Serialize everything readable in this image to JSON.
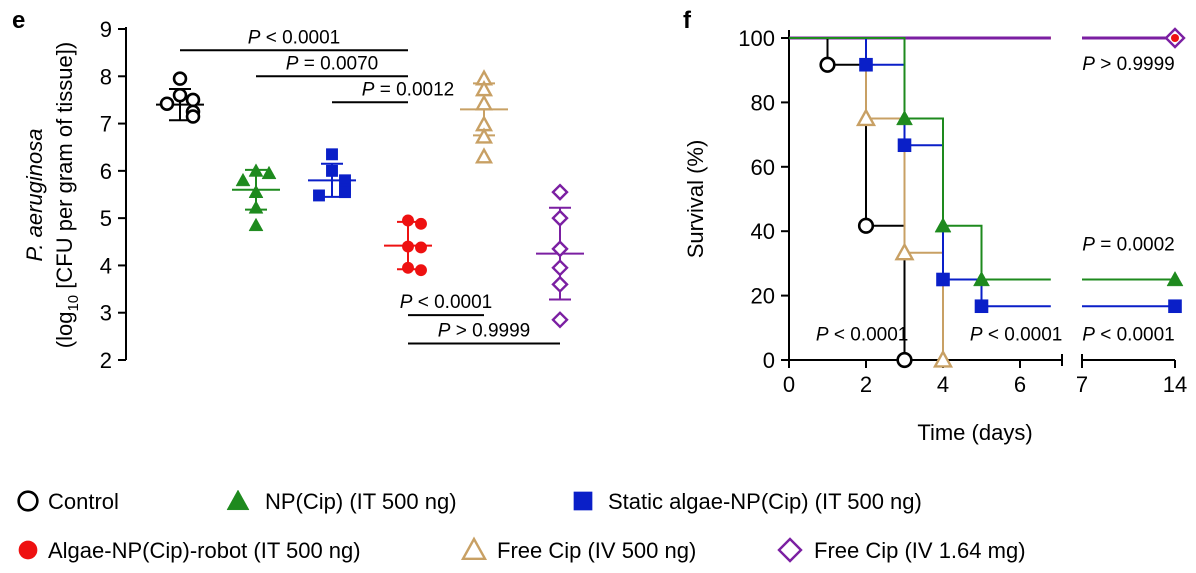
{
  "colors": {
    "control": "#000000",
    "np_cip": "#1e8a1e",
    "static": "#0a1fc8",
    "robot": "#ee1111",
    "free_it": "#c8a064",
    "free_iv": "#7b1fa2"
  },
  "legend": [
    {
      "key": "control",
      "label": "Control",
      "marker": "circle-open"
    },
    {
      "key": "np_cip",
      "label": "NP(Cip) (IT 500 ng)",
      "marker": "triangle-filled"
    },
    {
      "key": "static",
      "label": "Static algae-NP(Cip) (IT 500 ng)",
      "marker": "square-filled"
    },
    {
      "key": "robot",
      "label": "Algae-NP(Cip)-robot (IT 500 ng)",
      "marker": "circle-filled"
    },
    {
      "key": "free_it",
      "label": "Free Cip (IV 500 ng)",
      "marker": "triangle-open"
    },
    {
      "key": "free_iv",
      "label": "Free Cip (IV 1.64 mg)",
      "marker": "diamond-open"
    }
  ],
  "chart_data": [
    {
      "panel": "e",
      "type": "scatter",
      "ylabel_italic": "P. aeruginosa",
      "ylabel_pre": "(log",
      "ylabel_sub": "10",
      "ylabel_post": " [CFU per gram of tissue])",
      "ylim": [
        2,
        9
      ],
      "yticks": [
        "2",
        "3",
        "4",
        "5",
        "6",
        "7",
        "8",
        "9"
      ],
      "groups": [
        {
          "key": "control",
          "mean": 7.4,
          "sd": 0.33,
          "points": [
            7.95,
            7.6,
            7.5,
            7.42,
            7.25,
            7.15
          ]
        },
        {
          "key": "np_cip",
          "mean": 5.6,
          "sd": 0.42,
          "points": [
            6.0,
            5.95,
            5.8,
            5.55,
            5.22,
            4.85
          ]
        },
        {
          "key": "static",
          "mean": 5.8,
          "sd": 0.35,
          "points": [
            6.35,
            6.0,
            5.8,
            5.6,
            5.55,
            5.48
          ]
        },
        {
          "key": "robot",
          "mean": 4.42,
          "sd": 0.5,
          "points": [
            4.95,
            4.88,
            4.4,
            4.38,
            3.95,
            3.9
          ]
        },
        {
          "key": "free_it",
          "mean": 7.3,
          "sd": 0.55,
          "points": [
            7.95,
            7.72,
            7.42,
            6.98,
            6.72,
            6.3
          ]
        },
        {
          "key": "free_iv",
          "mean": 4.25,
          "sd": 0.97,
          "points": [
            5.55,
            5.0,
            4.35,
            3.95,
            3.6,
            2.85
          ]
        }
      ],
      "comparisons": [
        {
          "from": 0,
          "to": 3,
          "y": 8.55,
          "label": "P < 0.0001"
        },
        {
          "from": 1,
          "to": 3,
          "y": 8.0,
          "label": "P = 0.0070"
        },
        {
          "from": 2,
          "to": 3,
          "y": 7.45,
          "label": "P = 0.0012"
        },
        {
          "from": 3,
          "to": 4,
          "y": 2.95,
          "label": "P < 0.0001"
        },
        {
          "from": 3,
          "to": 5,
          "y": 2.35,
          "label": "P > 0.9999"
        }
      ]
    },
    {
      "panel": "f",
      "type": "line",
      "xlabel": "Time (days)",
      "ylabel": "Survival (%)",
      "ylim": [
        0,
        100
      ],
      "yticks": [
        "0",
        "20",
        "40",
        "60",
        "80",
        "100"
      ],
      "xticks": [
        "0",
        "2",
        "4",
        "6",
        "7",
        "14"
      ],
      "series": [
        {
          "key": "robot",
          "steps": [
            [
              0,
              100
            ],
            [
              14,
              100
            ]
          ],
          "markers": [],
          "end_marker": [
            14,
            100
          ]
        },
        {
          "key": "free_iv",
          "steps": [
            [
              0,
              100
            ],
            [
              14,
              100
            ]
          ],
          "markers": [],
          "end_marker": [
            14,
            100
          ]
        },
        {
          "key": "control",
          "steps": [
            [
              0,
              100
            ],
            [
              1,
              100
            ],
            [
              1,
              91.7
            ],
            [
              2,
              91.7
            ],
            [
              2,
              41.7
            ],
            [
              3,
              41.7
            ],
            [
              3,
              0
            ]
          ],
          "markers": [
            [
              1,
              91.7
            ],
            [
              2,
              41.7
            ],
            [
              3,
              0
            ]
          ]
        },
        {
          "key": "free_it",
          "steps": [
            [
              0,
              100
            ],
            [
              2,
              100
            ],
            [
              2,
              75
            ],
            [
              3,
              75
            ],
            [
              3,
              33.3
            ],
            [
              4,
              33.3
            ],
            [
              4,
              0
            ]
          ],
          "markers": [
            [
              2,
              75
            ],
            [
              3,
              33.3
            ],
            [
              4,
              0
            ]
          ]
        },
        {
          "key": "static",
          "steps": [
            [
              0,
              100
            ],
            [
              2,
              100
            ],
            [
              2,
              91.7
            ],
            [
              3,
              91.7
            ],
            [
              3,
              66.7
            ],
            [
              4,
              66.7
            ],
            [
              4,
              25
            ],
            [
              5,
              25
            ],
            [
              5,
              16.7
            ],
            [
              14,
              16.7
            ]
          ],
          "markers": [
            [
              2,
              91.7
            ],
            [
              3,
              66.7
            ],
            [
              4,
              25
            ],
            [
              5,
              16.7
            ],
            [
              14,
              16.7
            ]
          ]
        },
        {
          "key": "np_cip",
          "steps": [
            [
              0,
              100
            ],
            [
              3,
              100
            ],
            [
              3,
              75
            ],
            [
              4,
              75
            ],
            [
              4,
              41.7
            ],
            [
              5,
              41.7
            ],
            [
              5,
              25
            ],
            [
              14,
              25
            ]
          ],
          "markers": [
            [
              3,
              75
            ],
            [
              4,
              41.7
            ],
            [
              5,
              25
            ],
            [
              14,
              25
            ]
          ]
        }
      ],
      "annotations": [
        {
          "text": "P > 0.9999",
          "x": 10.5,
          "y": 90
        },
        {
          "text": "P = 0.0002",
          "x": 10.5,
          "y": 34
        },
        {
          "text": "P < 0.0001",
          "x": 1.9,
          "y": 6
        },
        {
          "text": "P < 0.0001",
          "x": 5.9,
          "y": 6
        },
        {
          "text": "P < 0.0001",
          "x": 10.5,
          "y": 6
        }
      ]
    }
  ]
}
